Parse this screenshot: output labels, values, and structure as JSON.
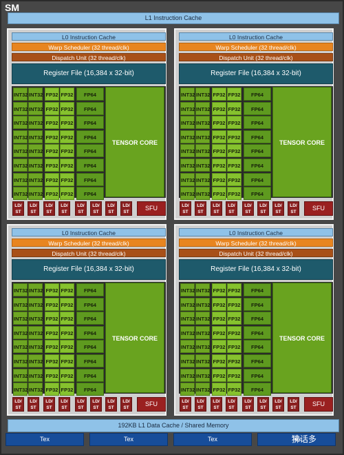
{
  "sm": {
    "title": "SM",
    "l1_instruction_cache": "L1 Instruction Cache",
    "l1_data_cache": "192KB L1 Data Cache / Shared Memory",
    "tex_units": [
      "Tex",
      "Tex",
      "Tex",
      "Tex"
    ],
    "watermark": "狒话多"
  },
  "block": {
    "l0_cache": "L0 Instruction Cache",
    "warp_scheduler": "Warp Scheduler (32 thread/clk)",
    "dispatch_unit": "Dispatch Unit (32 thread/clk)",
    "register_file": "Register File (16,384 x 32-bit)",
    "int32": "INT32",
    "fp32": "FP32",
    "fp64": "FP64",
    "tensor_core": "TENSOR CORE",
    "ldst": "LD/\nST",
    "sfu": "SFU"
  },
  "colors": {
    "background": "#474747",
    "cache": "#8fc2e8",
    "warp_scheduler": "#e88520",
    "dispatch": "#a85018",
    "register_file": "#1e5a6b",
    "cores": "#6ea623",
    "ldst": "#8a1f1f",
    "tex": "#174d9a"
  }
}
